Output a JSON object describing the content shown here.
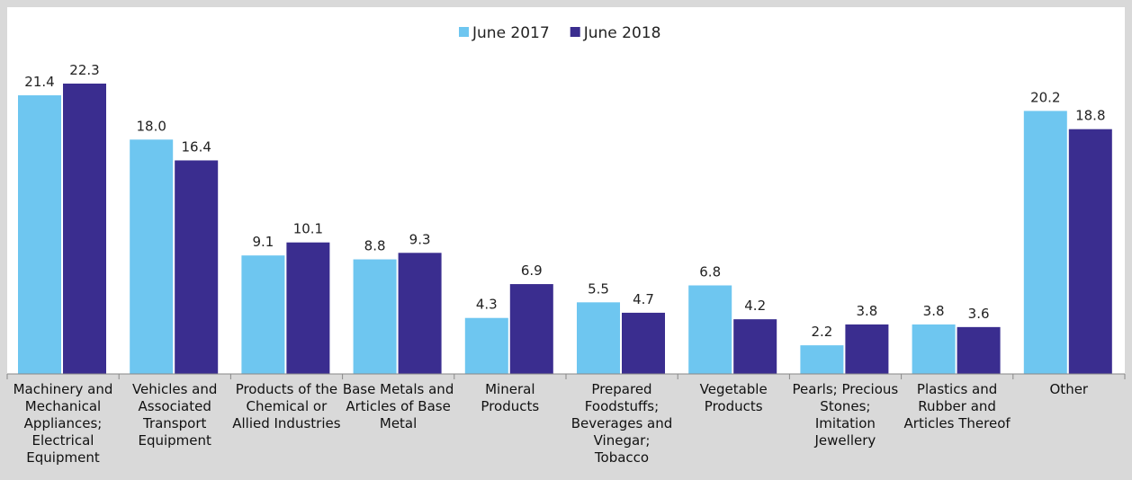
{
  "chart_data": {
    "type": "bar",
    "categories": [
      "Machinery and Mechanical Appliances; Electrical Equipment",
      "Vehicles and Associated Transport Equipment",
      "Products of the Chemical or Allied Industries",
      "Base Metals and Articles of Base Metal",
      "Mineral Products",
      "Prepared Foodstuffs; Beverages and Vinegar; Tobacco",
      "Vegetable Products",
      "Pearls; Precious Stones; Imitation Jewellery",
      "Plastics and Rubber and Articles Thereof",
      "Other"
    ],
    "series": [
      {
        "name": "June 2017",
        "color": "#6ec6f0",
        "values": [
          21.4,
          18,
          9.1,
          8.8,
          4.3,
          5.5,
          6.8,
          2.2,
          3.8,
          20.2
        ],
        "value_labels": [
          "21.4",
          "18.0",
          "9.1",
          "8.8",
          "4.3",
          "5.5",
          "6.8",
          "2.2",
          "3.8",
          "20.2"
        ]
      },
      {
        "name": "June 2018",
        "color": "#3a2d8f",
        "values": [
          22.3,
          16.4,
          10.1,
          9.3,
          6.9,
          4.7,
          4.2,
          3.8,
          3.6,
          18.8
        ],
        "value_labels": [
          "22.3",
          "16.4",
          "10.1",
          "9.3",
          "6.9",
          "4.7",
          "4.2",
          "3.8",
          "3.6",
          "18.8"
        ]
      }
    ],
    "legend": "top"
  }
}
